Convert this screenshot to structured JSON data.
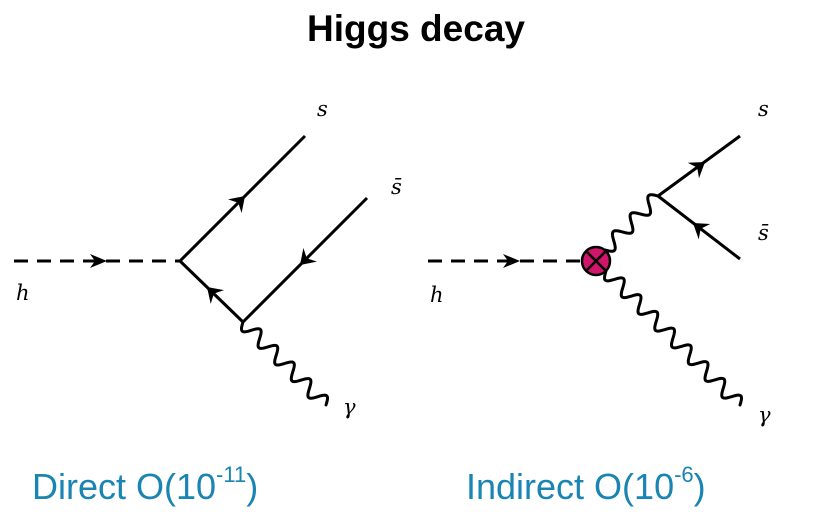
{
  "title": "Higgs decay",
  "diagrams": [
    {
      "particles": {
        "higgs": "h",
        "quark": "s",
        "antiquark": "s̄",
        "photon": "γ"
      },
      "caption": {
        "label": "Direct O(10",
        "exponent": "-11",
        "close": ")"
      }
    },
    {
      "particles": {
        "higgs": "h",
        "quark": "s",
        "antiquark": "s̄",
        "photon": "γ"
      },
      "caption": {
        "label": "Indirect O(10",
        "exponent": "-6",
        "close": ")"
      },
      "effective_vertex": {
        "symbol": "⊗",
        "color": "#d0166b"
      }
    }
  ],
  "colors": {
    "caption": "#1a84b3",
    "lines": "#000000"
  }
}
